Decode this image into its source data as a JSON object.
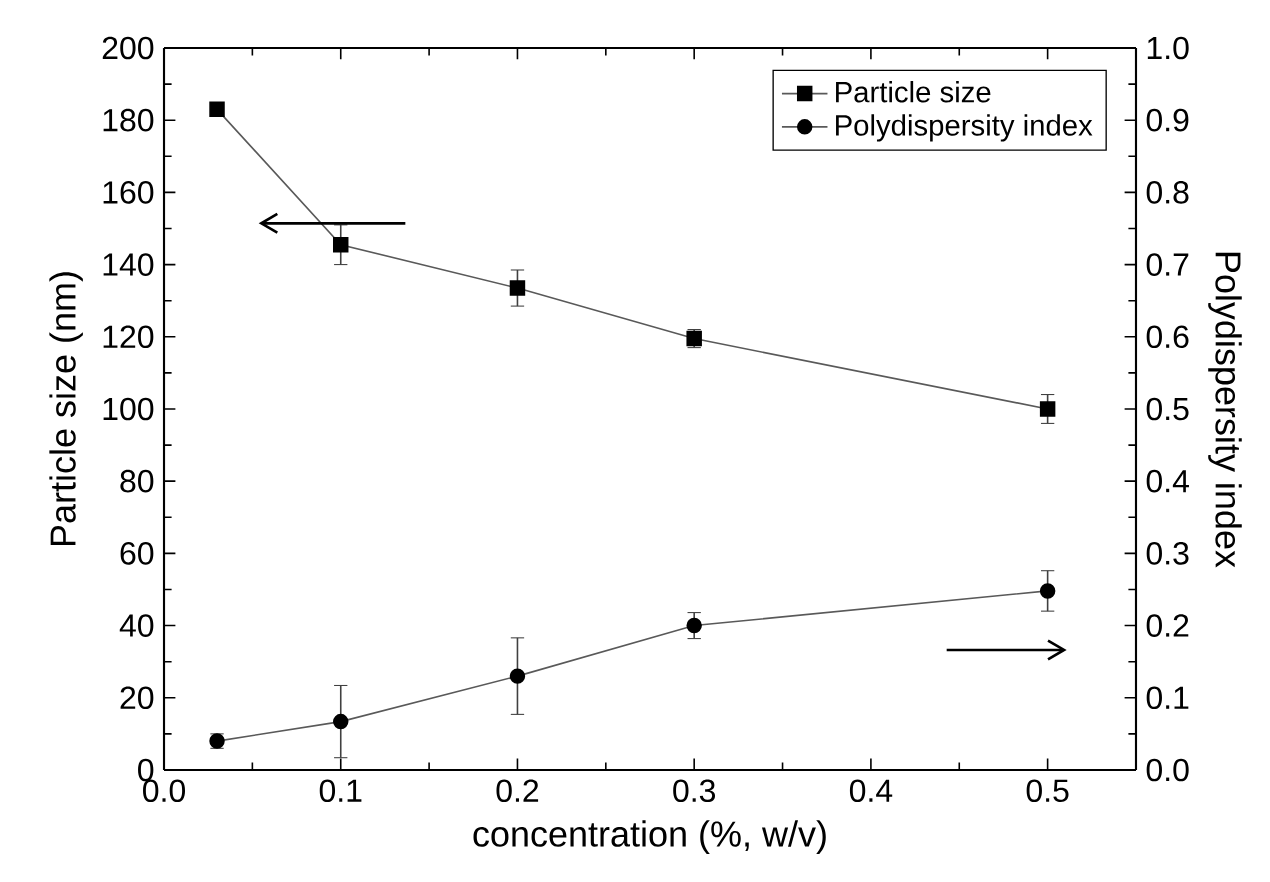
{
  "chart_data": {
    "type": "line",
    "xlabel": "concentration (%, w/v)",
    "ylabel": "Particle size (nm)",
    "y2label": "Polydispersity index",
    "x": [
      0.03,
      0.1,
      0.2,
      0.3,
      0.5
    ],
    "series": [
      {
        "name": "Particle size",
        "color": "#000000",
        "marker": "square",
        "values": [
          183,
          145.5,
          133.5,
          119.5,
          100
        ],
        "errors": [
          null,
          5.5,
          5,
          2.5,
          4
        ]
      },
      {
        "name": "Polydispersity index",
        "color": "#000000",
        "marker": "circle",
        "axis": "y2",
        "values": [
          0.04,
          0.067,
          0.13,
          0.2,
          0.248
        ],
        "errors": [
          0.01,
          0.05,
          0.053,
          0.018,
          0.028
        ]
      }
    ],
    "xlim": [
      0,
      0.55
    ],
    "xticks": [
      {
        "value": 0,
        "label": "0.0"
      },
      0.1,
      0.2,
      0.3,
      0.4,
      0.5
    ],
    "ylim": [
      0,
      200
    ],
    "yticks": [
      0,
      20,
      40,
      60,
      80,
      100,
      120,
      140,
      160,
      180,
      200
    ],
    "y2lim": [
      0,
      1
    ],
    "y2ticks": [
      {
        "value": 0,
        "label": "0.0"
      },
      0.1,
      0.2,
      0.3,
      0.4,
      0.5,
      0.6,
      0.7,
      0.8,
      0.9,
      {
        "value": 1,
        "label": "1.0"
      }
    ],
    "grid": false,
    "legend": "top right",
    "line_style": "solid"
  }
}
